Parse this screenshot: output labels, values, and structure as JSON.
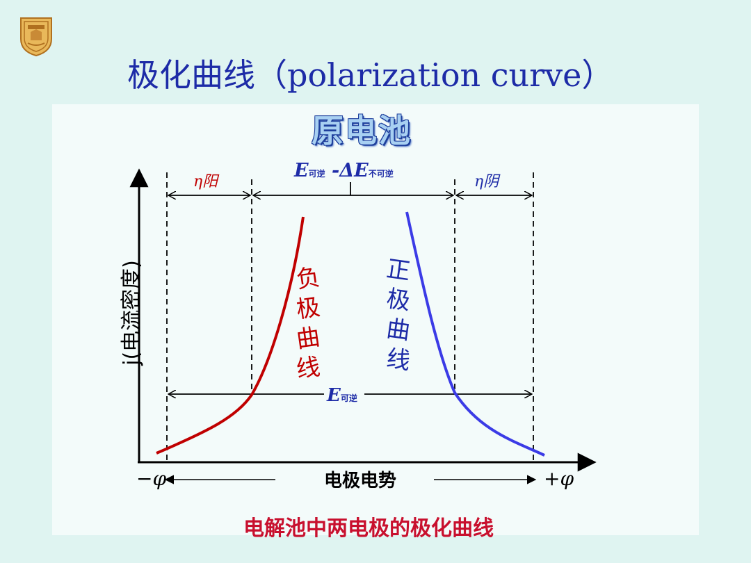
{
  "title": "极化曲线（polarization curve）",
  "subtitle": "原电池",
  "caption": "电解池中两电极的极化曲线",
  "y_axis_label": "j(电流密度)",
  "x_axis": {
    "left_symbol": "−φ",
    "center_label": "电极电势",
    "right_symbol": "+φ"
  },
  "labels": {
    "eta_anode": "η阳",
    "eta_cathode": "η阴",
    "e_top": "E可逆 -ΔE不可逆",
    "e_top_main": "E",
    "e_top_sub1": "可逆",
    "e_top_mid": " -ΔE",
    "e_top_sub2": "不可逆",
    "e_rev_main": "E",
    "e_rev_sub": "可逆",
    "neg_curve": "负极曲线",
    "pos_curve": "正极曲线"
  },
  "colors": {
    "title": "#1d2ba7",
    "caption": "#c8102e",
    "negative_curve": "#c00000",
    "positive_curve": "#3b3be6",
    "dimension_text": "#1d2ba7"
  }
}
